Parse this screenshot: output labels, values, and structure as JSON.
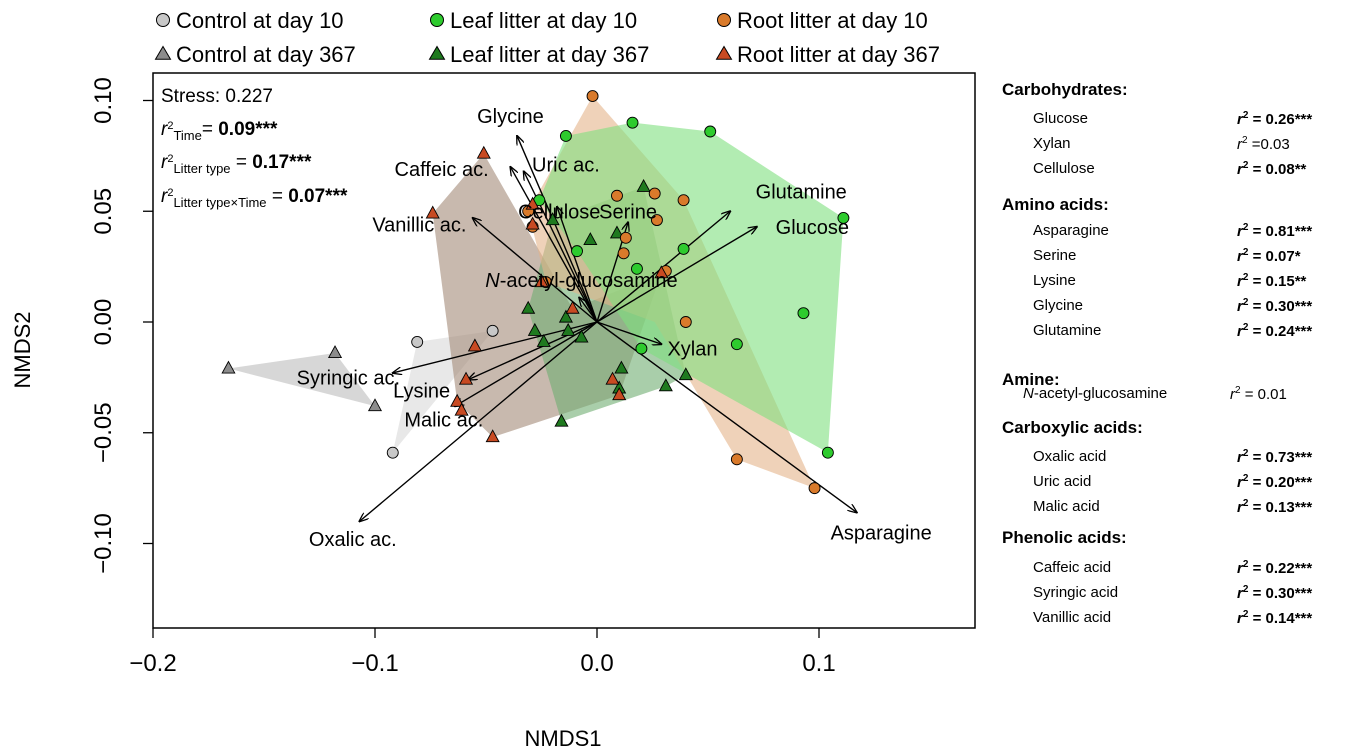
{
  "chart_data": {
    "type": "scatter",
    "xlabel": "NMDS1",
    "ylabel": "NMDS2",
    "xlim": [
      -0.2,
      0.17
    ],
    "ylim": [
      -0.14,
      0.11
    ],
    "x_ticks": [
      -0.2,
      -0.1,
      0.0,
      0.1
    ],
    "x_tick_labels": [
      "−0.2",
      "−0.1",
      "0.0",
      "0.1"
    ],
    "y_ticks": [
      -0.1,
      -0.05,
      0.0,
      0.05,
      0.1
    ],
    "y_tick_labels": [
      "−0.10",
      "−0.05",
      "0.00",
      "0.05",
      "0.10"
    ],
    "legend_position": "top",
    "legend": [
      {
        "label": "Control at day 10",
        "shape": "circle",
        "color": "#c8c8c8"
      },
      {
        "label": "Leaf litter at day 10",
        "shape": "circle",
        "color": "#2ecb2e"
      },
      {
        "label": "Root litter at day 10",
        "shape": "circle",
        "color": "#d97a2b"
      },
      {
        "label": "Control at day 367",
        "shape": "triangle",
        "color": "#8c8c8c"
      },
      {
        "label": "Leaf litter at day 367",
        "shape": "triangle",
        "color": "#1f7a1f"
      },
      {
        "label": "Root litter at day 367",
        "shape": "triangle",
        "color": "#c84a22"
      }
    ],
    "stats": {
      "stress_label": "Stress: 0.227",
      "r2_time_sub": "Time",
      "r2_time_val": "0.09***",
      "r2_type_sub": "Litter type",
      "r2_type_val": "0.17***",
      "r2_inter_sub": "Litter type×Time",
      "r2_inter_val": "0.07***"
    },
    "series": [
      {
        "name": "Control at day 10",
        "shape": "circle",
        "color": "#c8c8c8",
        "x": [
          -0.081,
          -0.047,
          -0.092
        ],
        "y": [
          -0.009,
          -0.004,
          -0.059
        ]
      },
      {
        "name": "Control at day 367",
        "shape": "triangle",
        "color": "#8c8c8c",
        "x": [
          -0.166,
          -0.118,
          -0.1
        ],
        "y": [
          -0.021,
          -0.014,
          -0.038
        ]
      },
      {
        "name": "Leaf litter at day 10",
        "shape": "circle",
        "color": "#2ecb2e",
        "x": [
          -0.014,
          0.016,
          0.051,
          0.111,
          -0.026,
          -0.009,
          0.018,
          0.039,
          0.063,
          0.093,
          0.02,
          0.104
        ],
        "y": [
          0.084,
          0.09,
          0.086,
          0.047,
          0.055,
          0.032,
          0.024,
          0.033,
          -0.01,
          0.004,
          -0.012,
          -0.059
        ]
      },
      {
        "name": "Leaf litter at day 367",
        "shape": "triangle",
        "color": "#1f7a1f",
        "x": [
          0.021,
          -0.02,
          -0.003,
          0.009,
          -0.031,
          -0.028,
          -0.013,
          -0.024,
          -0.007,
          -0.014,
          0.011,
          0.01,
          0.031,
          0.04,
          -0.016
        ],
        "y": [
          0.061,
          0.046,
          0.037,
          0.04,
          0.006,
          -0.004,
          -0.004,
          -0.009,
          -0.007,
          0.002,
          -0.021,
          -0.03,
          -0.029,
          -0.024,
          -0.045
        ]
      },
      {
        "name": "Root litter at day 10",
        "shape": "circle",
        "color": "#d97a2b",
        "x": [
          -0.002,
          0.009,
          0.039,
          -0.031,
          -0.029,
          0.013,
          0.026,
          0.012,
          0.04,
          -0.023,
          0.027,
          0.031,
          0.063,
          0.098
        ],
        "y": [
          0.102,
          0.057,
          0.055,
          0.05,
          0.043,
          0.038,
          0.058,
          0.031,
          0.0,
          0.018,
          0.046,
          0.023,
          -0.062,
          -0.075
        ]
      },
      {
        "name": "Root litter at day 367",
        "shape": "triangle",
        "color": "#c84a22",
        "x": [
          -0.051,
          -0.074,
          -0.029,
          -0.029,
          -0.025,
          -0.055,
          -0.059,
          -0.063,
          -0.061,
          -0.047,
          -0.011,
          0.007,
          0.01,
          0.029
        ],
        "y": [
          0.076,
          0.049,
          0.053,
          0.044,
          0.018,
          -0.011,
          -0.026,
          -0.036,
          -0.04,
          -0.052,
          0.006,
          -0.026,
          -0.033,
          0.022
        ]
      }
    ],
    "hulls": [
      {
        "group": "Control at day 10",
        "color": "#d9d9d9",
        "points": [
          [
            -0.081,
            -0.009
          ],
          [
            -0.047,
            -0.004
          ],
          [
            -0.092,
            -0.059
          ]
        ]
      },
      {
        "group": "Control at day 367",
        "color": "#bdbdbd",
        "points": [
          [
            -0.166,
            -0.021
          ],
          [
            -0.118,
            -0.014
          ],
          [
            -0.1,
            -0.038
          ]
        ]
      },
      {
        "group": "Root litter at day 367",
        "color": "#a38a78",
        "points": [
          [
            -0.074,
            0.049
          ],
          [
            -0.051,
            0.076
          ],
          [
            -0.011,
            0.006
          ],
          [
            0.029,
            0.022
          ],
          [
            0.01,
            -0.033
          ],
          [
            -0.047,
            -0.052
          ],
          [
            -0.063,
            -0.036
          ]
        ]
      },
      {
        "group": "Leaf litter at day 367",
        "color": "#6fae72",
        "points": [
          [
            -0.02,
            0.046
          ],
          [
            0.021,
            0.061
          ],
          [
            0.04,
            -0.024
          ],
          [
            0.031,
            -0.029
          ],
          [
            -0.016,
            -0.045
          ],
          [
            -0.031,
            0.006
          ]
        ]
      },
      {
        "group": "Root litter at day 10",
        "color": "#e5b48a",
        "points": [
          [
            -0.002,
            0.102
          ],
          [
            0.039,
            0.055
          ],
          [
            0.098,
            -0.075
          ],
          [
            0.063,
            -0.062
          ],
          [
            0.026,
            0.0
          ],
          [
            -0.023,
            0.018
          ],
          [
            -0.031,
            0.05
          ]
        ]
      },
      {
        "group": "Leaf litter at day 10",
        "color": "#7fe07f",
        "points": [
          [
            -0.014,
            0.084
          ],
          [
            0.016,
            0.09
          ],
          [
            0.051,
            0.086
          ],
          [
            0.111,
            0.047
          ],
          [
            0.104,
            -0.059
          ],
          [
            0.02,
            -0.012
          ],
          [
            -0.009,
            0.032
          ],
          [
            -0.026,
            0.055
          ]
        ]
      }
    ],
    "vectors": [
      {
        "label": "Glycine",
        "end": [
          -0.036,
          0.084
        ],
        "label_at": [
          -0.039,
          0.093
        ]
      },
      {
        "label": "Caffeic ac.",
        "end": [
          -0.039,
          0.07
        ],
        "label_at": [
          -0.07,
          0.069
        ]
      },
      {
        "label": "Uric ac.",
        "end": [
          -0.033,
          0.068
        ],
        "label_at": [
          -0.014,
          0.071
        ]
      },
      {
        "label": "Vanillic ac.",
        "end": [
          -0.056,
          0.047
        ],
        "label_at": [
          -0.08,
          0.044
        ]
      },
      {
        "label": "Cellulose",
        "end": [
          -0.018,
          0.052
        ],
        "label_at": [
          -0.017,
          0.05
        ]
      },
      {
        "label": "Serine",
        "end": [
          0.014,
          0.045
        ],
        "label_at": [
          0.014,
          0.05
        ]
      },
      {
        "label": "Glutamine",
        "end": [
          0.06,
          0.05
        ],
        "label_at": [
          0.092,
          0.059
        ]
      },
      {
        "label": "Glucose",
        "end": [
          0.072,
          0.043
        ],
        "label_at": [
          0.097,
          0.043
        ]
      },
      {
        "label": "N-acetyl-glucosamine",
        "end": [
          -0.008,
          0.011
        ],
        "label_at": [
          -0.007,
          0.019
        ]
      },
      {
        "label": "Xylan",
        "end": [
          0.029,
          -0.01
        ],
        "label_at": [
          0.043,
          -0.012
        ]
      },
      {
        "label": "Syringic ac.",
        "end": [
          -0.092,
          -0.023
        ],
        "label_at": [
          -0.112,
          -0.025
        ]
      },
      {
        "label": "Lysine",
        "end": [
          -0.058,
          -0.026
        ],
        "label_at": [
          -0.079,
          -0.031
        ]
      },
      {
        "label": "Malic ac.",
        "end": [
          -0.064,
          -0.038
        ],
        "label_at": [
          -0.069,
          -0.044
        ]
      },
      {
        "label": "Oxalic ac.",
        "end": [
          -0.107,
          -0.09
        ],
        "label_at": [
          -0.11,
          -0.098
        ]
      },
      {
        "label": "Asparagine",
        "end": [
          0.117,
          -0.086
        ],
        "label_at": [
          0.128,
          -0.095
        ]
      }
    ]
  },
  "side_legend": {
    "groups": [
      {
        "title": "Carbohydrates:",
        "items": [
          {
            "name": "Glucose",
            "val": "0.26***",
            "sig": true,
            "sep": " = "
          },
          {
            "name": "Xylan",
            "val": "0.03",
            "sig": false,
            "sep": " ="
          },
          {
            "name": "Cellulose",
            "val": "0.08**",
            "sig": true,
            "sep": " = "
          }
        ]
      },
      {
        "title": "Amino acids:",
        "items": [
          {
            "name": "Asparagine",
            "val": "0.81***",
            "sig": true,
            "sep": " = "
          },
          {
            "name": "Serine",
            "val": "0.07*",
            "sig": true,
            "sep": " = "
          },
          {
            "name": "Lysine",
            "val": "0.15**",
            "sig": true,
            "sep": " = "
          },
          {
            "name": "Glycine",
            "val": "0.30***",
            "sig": true,
            "sep": " = "
          },
          {
            "name": "Glutamine",
            "val": "0.24***",
            "sig": true,
            "sep": " = "
          }
        ]
      },
      {
        "title": "Amine:",
        "items": [
          {
            "name": "N-acetyl-glucosamine",
            "name_italic_prefix": "N",
            "name_rest": "-acetyl-glucosamine",
            "val": "0.01",
            "sig": false,
            "sep": " = "
          }
        ]
      },
      {
        "title": "Carboxylic acids:",
        "items": [
          {
            "name": "Oxalic acid",
            "val": "0.73***",
            "sig": true,
            "sep": " = "
          },
          {
            "name": "Uric acid",
            "val": "0.20***",
            "sig": true,
            "sep": " = "
          },
          {
            "name": "Malic acid",
            "val": "0.13***",
            "sig": true,
            "sep": " = "
          }
        ]
      },
      {
        "title": "Phenolic acids:",
        "items": [
          {
            "name": "Caffeic acid",
            "val": "0.22***",
            "sig": true,
            "sep": " = "
          },
          {
            "name": "Syringic acid",
            "val": "0.30***",
            "sig": true,
            "sep": " = "
          },
          {
            "name": "Vanillic acid",
            "val": "0.14***",
            "sig": true,
            "sep": " = "
          }
        ]
      }
    ]
  }
}
